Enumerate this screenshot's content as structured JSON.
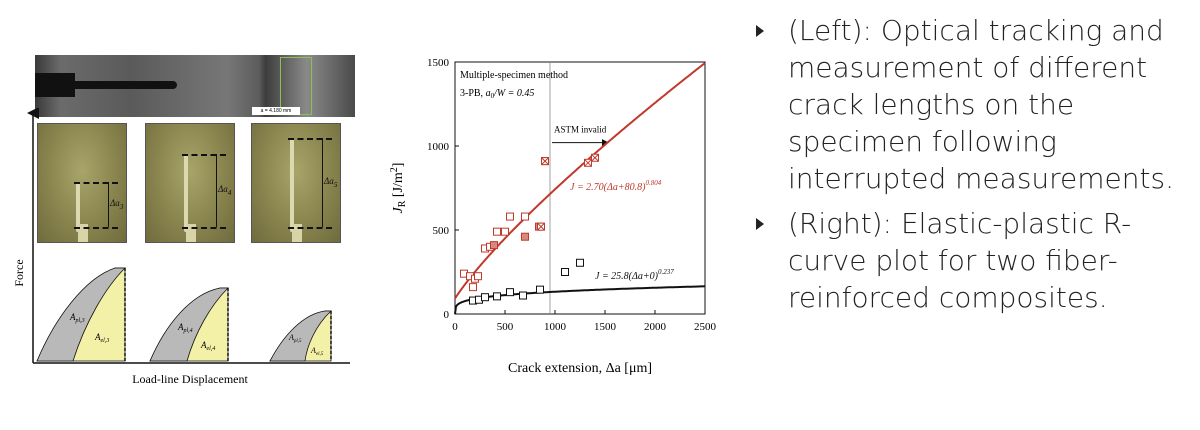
{
  "left_figure": {
    "micrograph_label": "a = 4.180 mm",
    "photos": [
      {
        "label": "Δa",
        "subscript": "3"
      },
      {
        "label": "Δa",
        "subscript": "4"
      },
      {
        "label": "Δa",
        "subscript": "5"
      }
    ],
    "y_axis_label": "Force",
    "x_axis_label": "Load-line Displacement",
    "curves": [
      {
        "apl": "A",
        "apl_sub": "pl,3",
        "ael": "A",
        "ael_sub": "el,3"
      },
      {
        "apl": "A",
        "apl_sub": "pl,4",
        "ael": "A",
        "ael_sub": "el,4"
      },
      {
        "apl": "A",
        "apl_sub": "pl,5",
        "ael": "A",
        "ael_sub": "el,5"
      }
    ],
    "colors": {
      "plastic": "#b9b9b9",
      "elastic": "#f3f0a8"
    }
  },
  "chart_data": {
    "type": "scatter",
    "title_line1": "Multiple-specimen method",
    "title_line2_prefix": "3-PB, ",
    "title_line2_var": "a",
    "title_line2_sub": "0",
    "title_line2_suffix": "/W = 0.45",
    "xlabel": "Crack extension, Δa [μm]",
    "ylabel_var": "J",
    "ylabel_sub": "R",
    "ylabel_unit": " [J/m",
    "ylabel_sup": "2",
    "ylabel_close": "]",
    "xlim": [
      0,
      2500
    ],
    "ylim": [
      0,
      1500
    ],
    "x_ticks": [
      0,
      500,
      1000,
      1500,
      2000,
      2500
    ],
    "y_ticks": [
      0,
      500,
      1000,
      1500
    ],
    "validity_limit_x": 950,
    "annotation_invalid": "ASTM invalid",
    "series": [
      {
        "color": "#c0392b",
        "equation": "J = 2.70(Δa+80.8)",
        "equation_exp": "0.804",
        "fit": {
          "c": 2.7,
          "offset": 80.8,
          "p": 0.804
        },
        "points_open": [
          [
            90,
            240
          ],
          [
            150,
            225
          ],
          [
            180,
            160
          ],
          [
            200,
            210
          ],
          [
            230,
            225
          ],
          [
            300,
            390
          ],
          [
            350,
            400
          ],
          [
            420,
            490
          ],
          [
            500,
            490
          ],
          [
            550,
            580
          ],
          [
            700,
            580
          ],
          [
            900,
            910
          ]
        ],
        "points_filled": [
          [
            390,
            410
          ],
          [
            700,
            460
          ],
          [
            840,
            520
          ]
        ],
        "points_crossed": [
          [
            900,
            910
          ],
          [
            1330,
            900
          ],
          [
            1400,
            930
          ],
          [
            860,
            520
          ]
        ]
      },
      {
        "color": "#111111",
        "equation": "J = 25.8(Δa+0)",
        "equation_exp": "0.237",
        "fit": {
          "c": 25.8,
          "offset": 0,
          "p": 0.237
        },
        "points_open": [
          [
            180,
            80
          ],
          [
            240,
            85
          ],
          [
            300,
            100
          ],
          [
            420,
            105
          ],
          [
            550,
            130
          ],
          [
            680,
            110
          ],
          [
            850,
            145
          ],
          [
            1100,
            250
          ],
          [
            1250,
            305
          ]
        ]
      }
    ]
  },
  "bullets": [
    "(Left): Optical tracking and measurement of different crack lengths on the specimen following interrupted measurements.",
    "(Right): Elastic-plastic R-curve plot for two fiber-reinforced composites."
  ]
}
